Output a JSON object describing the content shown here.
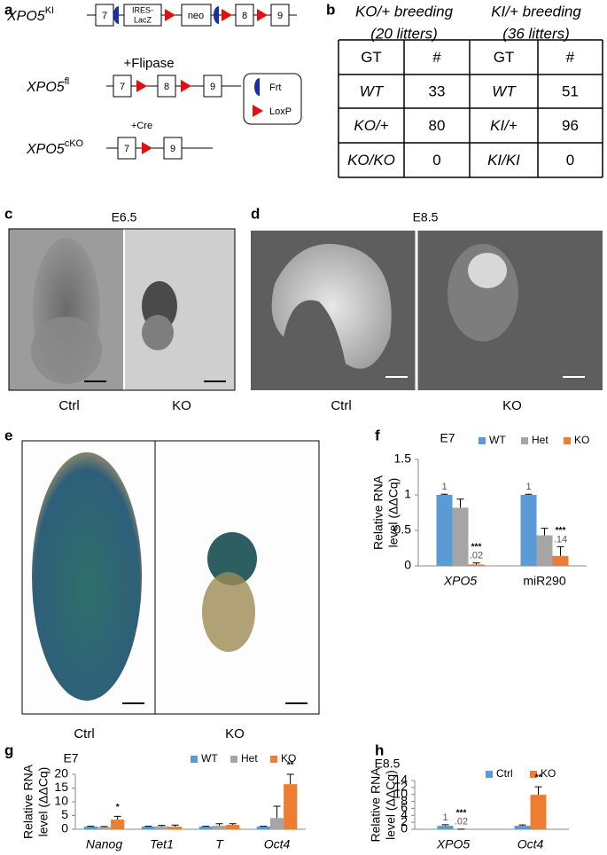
{
  "panel_labels": [
    "a",
    "b",
    "c",
    "d",
    "e",
    "f",
    "g",
    "h"
  ],
  "diagram": {
    "alleles": [
      {
        "name": "XPO5",
        "superscript": "KI"
      },
      {
        "name": "XPO5",
        "superscript": "fl"
      },
      {
        "name": "XPO5",
        "superscript": "cKO"
      }
    ],
    "elements": [
      "7",
      "IRES-",
      "LacZ",
      "neo",
      "8",
      "9"
    ],
    "steps": [
      "+Flipase",
      "+Cre"
    ],
    "legend": [
      "Frt",
      "LoxP"
    ]
  },
  "table": {
    "groups": [
      {
        "title_lines": [
          "KO/+ breeding",
          "(20 litters)"
        ]
      },
      {
        "title_lines": [
          "KI/+ breeding",
          "(36 litters)"
        ]
      }
    ],
    "rows": [
      [
        "GT",
        "#",
        "GT",
        "#"
      ],
      [
        "WT",
        "33",
        "WT",
        "51"
      ],
      [
        "KO/+",
        "80",
        "KI/+",
        "96"
      ],
      [
        "KO/KO",
        "0",
        "KI/KI",
        "0"
      ]
    ]
  },
  "images": {
    "c": {
      "title": "E6.5",
      "labels": [
        "Ctrl",
        "KO"
      ]
    },
    "d": {
      "title": "E8.5",
      "labels": [
        "Ctrl",
        "KO"
      ]
    },
    "e": {
      "labels": [
        "Ctrl",
        "KO"
      ]
    }
  },
  "chart_data": [
    {
      "type": "bar",
      "title": "E7",
      "y_label_lines": [
        "Relative RNA",
        "level (ΔΔCq)"
      ],
      "categories": [
        "XPO5",
        "miR290"
      ],
      "category_style": [
        "italic",
        "normal"
      ],
      "ylim": [
        0,
        1.5
      ],
      "yticks": [
        0,
        0.5,
        1,
        1.5
      ],
      "legend": "top",
      "series": [
        {
          "name": "WT",
          "color": "#5b9bd5",
          "values": [
            1,
            1
          ],
          "errors": [
            0.01,
            0.01
          ],
          "value_labels": [
            "1",
            "1"
          ]
        },
        {
          "name": "Het",
          "color": "#a5a5a5",
          "values": [
            0.82,
            0.43
          ],
          "errors": [
            0.12,
            0.1
          ]
        },
        {
          "name": "KO",
          "color": "#ed7d31",
          "values": [
            0.02,
            0.14
          ],
          "errors": [
            0.02,
            0.13
          ],
          "value_labels": [
            ".02",
            ".14"
          ],
          "significance": [
            "***",
            "***"
          ]
        }
      ]
    },
    {
      "type": "bar",
      "title": "E7",
      "y_label_lines": [
        "Relative RNA",
        "level (ΔΔCq)"
      ],
      "categories": [
        "Nanog",
        "Tet1",
        "T",
        "Oct4"
      ],
      "category_style": [
        "italic",
        "italic",
        "italic",
        "italic"
      ],
      "ylim": [
        0,
        20
      ],
      "yticks": [
        0,
        5,
        10,
        15,
        20
      ],
      "legend": "top",
      "series": [
        {
          "name": "WT",
          "color": "#5b9bd5",
          "values": [
            1,
            1,
            1,
            1
          ],
          "errors": [
            0.1,
            0.1,
            0.1,
            0.1
          ]
        },
        {
          "name": "Het",
          "color": "#a5a5a5",
          "values": [
            0.8,
            1.1,
            1.3,
            4.1
          ],
          "errors": [
            0.2,
            0.3,
            0.7,
            4.3
          ]
        },
        {
          "name": "KO",
          "color": "#ed7d31",
          "values": [
            3.5,
            0.95,
            1.6,
            16.4
          ],
          "errors": [
            1.2,
            0.6,
            0.4,
            3.6
          ],
          "significance": [
            "*",
            null,
            null,
            "**"
          ]
        }
      ]
    },
    {
      "type": "bar",
      "title": "E8.5",
      "y_label_lines": [
        "Relative RNA",
        "level (ΔΔCq)"
      ],
      "categories": [
        "XPO5",
        "Oct4"
      ],
      "category_style": [
        "italic",
        "italic"
      ],
      "ylim": [
        0,
        14
      ],
      "yticks": [
        0,
        2,
        4,
        6,
        8,
        10,
        12,
        14
      ],
      "legend": "top",
      "series": [
        {
          "name": "Ctrl",
          "color": "#5b9bd5",
          "values": [
            1,
            1
          ],
          "errors": [
            0.3,
            0.25
          ],
          "value_labels": [
            "1",
            null
          ]
        },
        {
          "name": "KO",
          "color": "#ed7d31",
          "values": [
            0.02,
            9.9
          ],
          "errors": [
            0.02,
            2.3
          ],
          "value_labels": [
            ".02",
            null
          ],
          "significance": [
            "***",
            "**"
          ]
        }
      ]
    }
  ]
}
